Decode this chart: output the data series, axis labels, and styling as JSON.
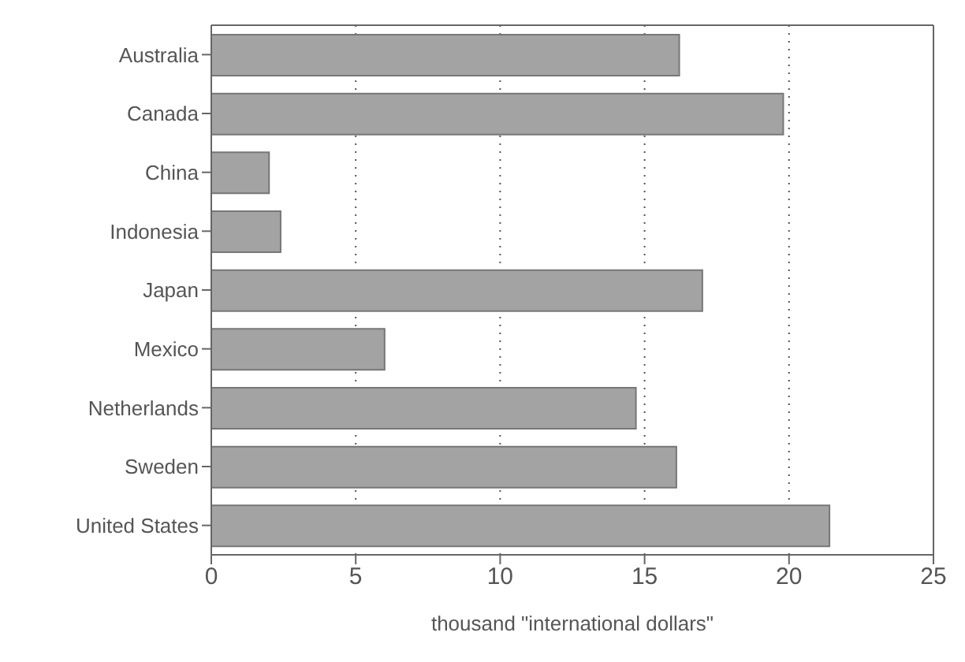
{
  "chart_data": {
    "type": "bar",
    "orientation": "horizontal",
    "xlabel": "thousand \"international dollars\"",
    "categories": [
      "Australia",
      "Canada",
      "China",
      "Indonesia",
      "Japan",
      "Mexico",
      "Netherlands",
      "Sweden",
      "United States"
    ],
    "values": [
      16.2,
      19.8,
      2.0,
      2.4,
      17.0,
      6.0,
      14.7,
      16.1,
      21.4
    ],
    "color": "#a3a3a3",
    "xlim": [
      0,
      25
    ],
    "xticks": [
      0,
      5,
      10,
      15,
      20,
      25
    ],
    "grid": "x"
  }
}
